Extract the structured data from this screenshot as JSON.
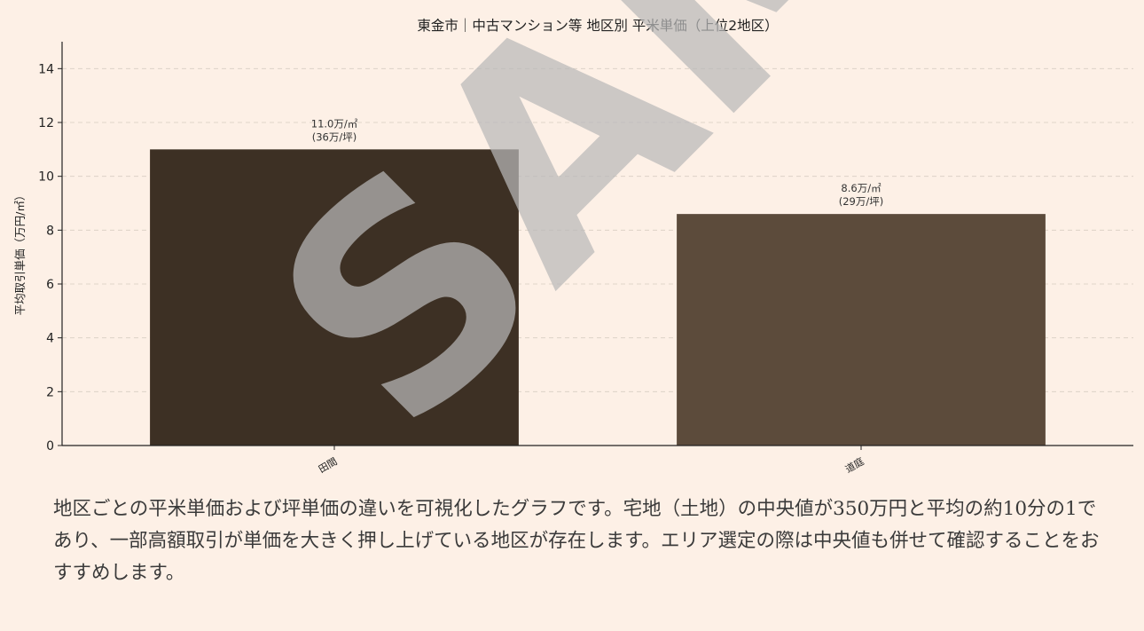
{
  "chart_data": {
    "type": "bar",
    "title": "東金市｜中古マンション等 地区別 平米単価（上位2地区）",
    "xlabel": "",
    "ylabel": "平均取引単価（万円/㎡）",
    "categories": [
      "田間",
      "道庭"
    ],
    "values": [
      11.0,
      8.6
    ],
    "data_labels": [
      [
        "11.0万/㎡",
        "(36万/坪)"
      ],
      [
        "8.6万/㎡",
        "(29万/坪)"
      ]
    ],
    "bar_colors": [
      "#3d3024",
      "#5c4b3b"
    ],
    "ylim": [
      0,
      15
    ],
    "yticks": [
      0,
      2,
      4,
      6,
      8,
      10,
      12,
      14
    ],
    "grid": "horizontal dashed",
    "legend": "none"
  },
  "caption": {
    "text": "地区ごとの平米単価および坪単価の違いを可視化したグラフです。宅地（土地）の中央値が350万円と平均の約10分の1であり、一部高額取引が単価を大きく押し上げている地区が存在します。エリア選定の際は中央値も併せて確認することをおすすめします。"
  },
  "watermark": {
    "text": "SAMPLE"
  }
}
